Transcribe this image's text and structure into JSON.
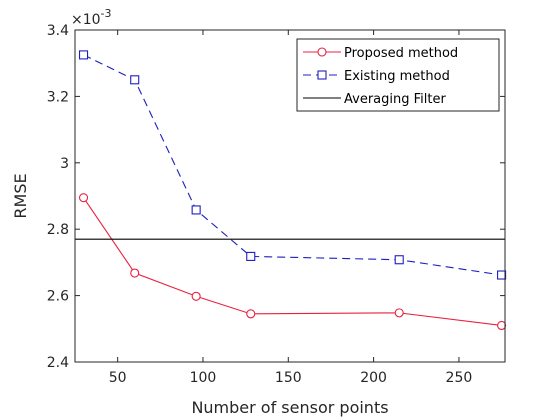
{
  "chart_data": {
    "type": "line",
    "xlabel": "Number of sensor points",
    "ylabel": "RMSE",
    "y_multiplier_label": "×10",
    "y_multiplier_exp": "-3",
    "xlim": [
      25,
      277
    ],
    "ylim": [
      2.4,
      3.4
    ],
    "xticks": [
      50,
      100,
      150,
      200,
      250
    ],
    "xtick_labels": [
      "50",
      "100",
      "150",
      "200",
      "250"
    ],
    "yticks": [
      2.4,
      2.6,
      2.8,
      3.0,
      3.2,
      3.4
    ],
    "ytick_labels": [
      "2.4",
      "2.6",
      "2.8",
      "3",
      "3.2",
      "3.4"
    ],
    "legend_position": "top-right",
    "grid": false,
    "series": [
      {
        "name": "Proposed method",
        "color": "#e8213f",
        "style": "solid",
        "marker": "circle",
        "x": [
          30,
          60,
          96,
          128,
          215,
          275
        ],
        "y": [
          2.895,
          2.668,
          2.598,
          2.545,
          2.548,
          2.51
        ]
      },
      {
        "name": "Existing method",
        "color": "#1f1fbf",
        "style": "dashed",
        "marker": "square",
        "x": [
          30,
          60,
          96,
          128,
          215,
          275
        ],
        "y": [
          3.325,
          3.25,
          2.858,
          2.718,
          2.708,
          2.662
        ]
      },
      {
        "name": "Averaging Filter",
        "color": "#000000",
        "style": "solid",
        "marker": "none",
        "x": [
          25,
          277
        ],
        "y": [
          2.77,
          2.77
        ]
      }
    ]
  }
}
